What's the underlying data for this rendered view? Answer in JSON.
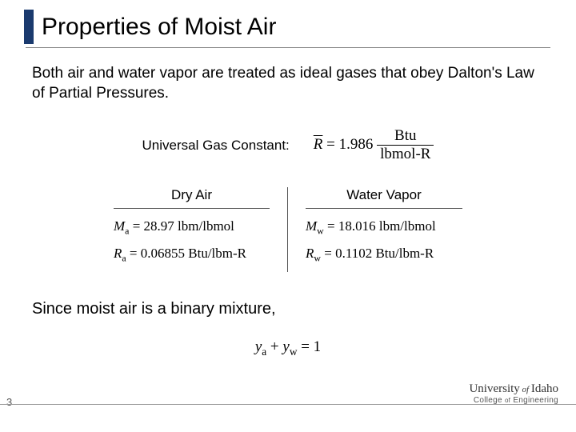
{
  "title": "Properties of Moist Air",
  "intro": "Both air and water vapor are treated as ideal gases that obey Dalton's Law of Partial Pressures.",
  "gas_constant": {
    "label": "Universal Gas Constant:",
    "symbol": "R̄",
    "value": "1.986",
    "unit_num": "Btu",
    "unit_den": "lbmol-R"
  },
  "table": {
    "left": {
      "header": "Dry Air",
      "rows": [
        {
          "sym": "M",
          "sub": "a",
          "val": "28.97",
          "unit": "lbm/lbmol"
        },
        {
          "sym": "R",
          "sub": "a",
          "val": "0.06855",
          "unit": "Btu/lbm-R"
        }
      ]
    },
    "right": {
      "header": "Water Vapor",
      "rows": [
        {
          "sym": "M",
          "sub": "w",
          "val": "18.016",
          "unit": "lbm/lbmol"
        },
        {
          "sym": "R",
          "sub": "w",
          "val": "0.1102",
          "unit": "Btu/lbm-R"
        }
      ]
    }
  },
  "mixture_text": "Since moist air is a binary mixture,",
  "mixture_formula": {
    "term1_sym": "y",
    "term1_sub": "a",
    "term2_sym": "y",
    "term2_sub": "w",
    "rhs": "1"
  },
  "page_number": "3",
  "footer": {
    "university": "University",
    "of": "of",
    "name": "Idaho",
    "college": "College",
    "of2": "of",
    "dept": "Engineering"
  },
  "colors": {
    "title_bar": "#1a3a6e",
    "text": "#000000",
    "rule": "#888888",
    "background": "#ffffff"
  }
}
